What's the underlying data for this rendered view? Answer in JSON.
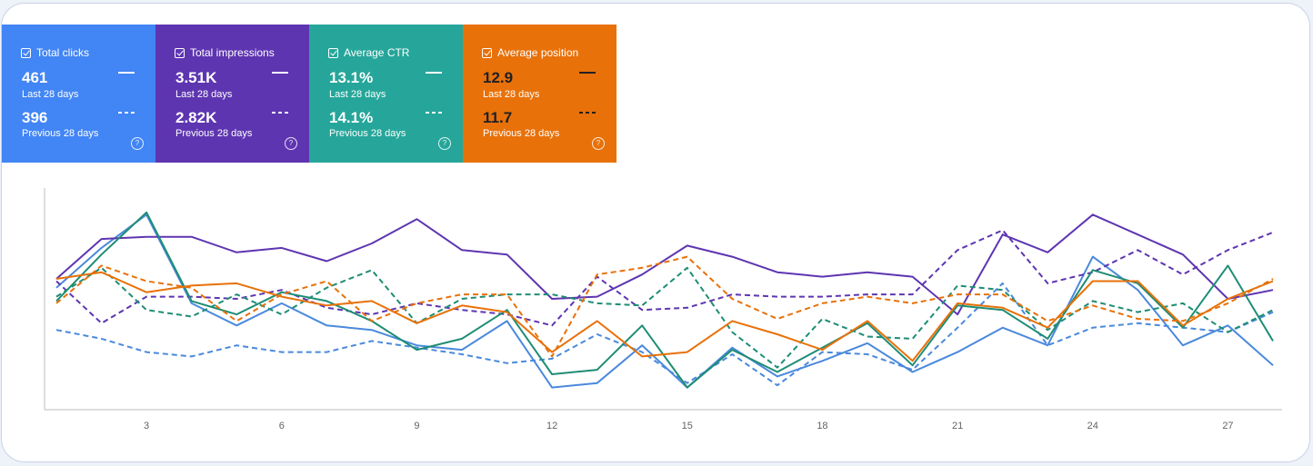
{
  "metrics": [
    {
      "title": "Total clicks",
      "current": "461",
      "current_label": "Last 28 days",
      "previous": "396",
      "previous_label": "Previous 28 days",
      "color": "#4285f4",
      "checked": true,
      "help_icon": "help-circle-icon"
    },
    {
      "title": "Total impressions",
      "current": "3.51K",
      "current_label": "Last 28 days",
      "previous": "2.82K",
      "previous_label": "Previous 28 days",
      "color": "#5e35b1",
      "checked": true,
      "help_icon": "help-circle-icon"
    },
    {
      "title": "Average CTR",
      "current": "13.1%",
      "current_label": "Last 28 days",
      "previous": "14.1%",
      "previous_label": "Previous 28 days",
      "color": "#26a69a",
      "checked": true,
      "help_icon": "help-circle-icon"
    },
    {
      "title": "Average position",
      "current": "12.9",
      "current_label": "Last 28 days",
      "previous": "11.7",
      "previous_label": "Previous 28 days",
      "color": "#e8710a",
      "checked": true,
      "help_icon": "help-circle-icon"
    }
  ],
  "chart_data": {
    "type": "line",
    "x": [
      1,
      2,
      3,
      4,
      5,
      6,
      7,
      8,
      9,
      10,
      11,
      12,
      13,
      14,
      15,
      16,
      17,
      18,
      19,
      20,
      21,
      22,
      23,
      24,
      25,
      26,
      27,
      28
    ],
    "xticks": [
      "3",
      "6",
      "9",
      "12",
      "15",
      "18",
      "21",
      "24",
      "27"
    ],
    "xlabel": "",
    "ylabel": "",
    "ylim": [
      0,
      100
    ],
    "grid": false,
    "axes_labels_y": false,
    "series": [
      {
        "metric": "Total clicks",
        "period": "current",
        "style": "solid",
        "color": "#4a89dc",
        "values": [
          55,
          73,
          88,
          48,
          38,
          48,
          38,
          36,
          29,
          27,
          40,
          10,
          12,
          29,
          10,
          28,
          15,
          22,
          30,
          17,
          26,
          37,
          29,
          69,
          54,
          29,
          38,
          20
        ]
      },
      {
        "metric": "Total clicks",
        "period": "previous",
        "style": "dashed",
        "color": "#4a89dc",
        "values": [
          36,
          32,
          26,
          24,
          29,
          26,
          26,
          31,
          28,
          25,
          21,
          23,
          34,
          26,
          12,
          25,
          11,
          26,
          25,
          18,
          37,
          57,
          29,
          37,
          39,
          37,
          35,
          44
        ]
      },
      {
        "metric": "Total impressions",
        "period": "current",
        "style": "solid",
        "color": "#5e35b1",
        "values": [
          59,
          77,
          78,
          78,
          71,
          73,
          67,
          75,
          86,
          72,
          70,
          50,
          51,
          61,
          74,
          69,
          62,
          60,
          62,
          60,
          43,
          79,
          71,
          88,
          79,
          70,
          50,
          54
        ]
      },
      {
        "metric": "Total impressions",
        "period": "previous",
        "style": "dashed",
        "color": "#5e35b1",
        "values": [
          58,
          39,
          51,
          51,
          50,
          54,
          46,
          43,
          48,
          45,
          43,
          38,
          60,
          45,
          46,
          52,
          51,
          51,
          52,
          52,
          72,
          81,
          57,
          62,
          72,
          61,
          72,
          80
        ]
      },
      {
        "metric": "Average CTR",
        "period": "current",
        "style": "solid",
        "color": "#1e8d74",
        "values": [
          49,
          70,
          89,
          49,
          43,
          53,
          49,
          40,
          27,
          32,
          45,
          16,
          18,
          38,
          10,
          27,
          17,
          28,
          39,
          20,
          47,
          45,
          32,
          63,
          57,
          37,
          65,
          31
        ]
      },
      {
        "metric": "Average CTR",
        "period": "previous",
        "style": "dashed",
        "color": "#1e8d74",
        "values": [
          51,
          64,
          45,
          42,
          52,
          43,
          55,
          63,
          39,
          50,
          52,
          52,
          48,
          47,
          64,
          35,
          19,
          41,
          33,
          32,
          56,
          54,
          36,
          49,
          44,
          48,
          35,
          45
        ]
      },
      {
        "metric": "Average position",
        "period": "current",
        "style": "solid",
        "color": "#e8710a",
        "values": [
          59,
          62,
          53,
          56,
          57,
          51,
          47,
          49,
          39,
          47,
          44,
          26,
          40,
          24,
          26,
          40,
          34,
          27,
          40,
          22,
          48,
          46,
          37,
          58,
          58,
          38,
          50,
          58
        ]
      },
      {
        "metric": "Average position",
        "period": "previous",
        "style": "dashed",
        "color": "#e8710a",
        "values": [
          48,
          65,
          58,
          55,
          40,
          52,
          58,
          40,
          48,
          52,
          52,
          24,
          61,
          64,
          69,
          50,
          41,
          48,
          51,
          48,
          52,
          52,
          40,
          47,
          41,
          40,
          48,
          59
        ]
      }
    ]
  }
}
